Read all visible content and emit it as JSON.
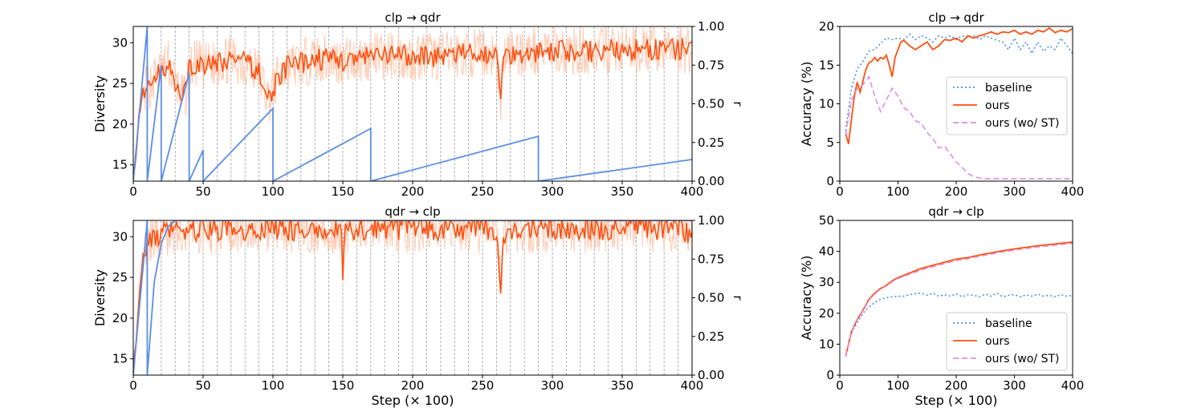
{
  "colors": {
    "ours": "#ff4f0e",
    "ours_raw": "#ffc9b0",
    "r_curve": "#5b8ee6",
    "baseline": "#4a90e2",
    "wo_st": "#dd8fdb",
    "grid": "#9a9a9a"
  },
  "chart_data": [
    {
      "id": "div-top",
      "type": "line",
      "title": "clp → qdr",
      "xlabel": "",
      "ylabel": "Diversity",
      "y2label": "r",
      "xlim": [
        0,
        400
      ],
      "ylim": [
        13,
        32
      ],
      "y2lim": [
        0,
        1
      ],
      "xticks": [
        0,
        50,
        100,
        150,
        200,
        250,
        300,
        350,
        400
      ],
      "yticks": [
        15,
        20,
        25,
        30
      ],
      "y2ticks": [
        "0.00",
        "0.25",
        "0.50",
        "0.75",
        "1.00"
      ],
      "restart_lines": [
        10,
        20,
        30,
        40,
        50,
        60,
        70,
        80,
        90,
        100,
        110,
        120,
        130,
        140,
        150,
        160,
        170,
        180,
        190,
        200,
        210,
        220,
        230,
        240,
        250,
        260,
        270,
        280,
        290,
        300,
        310,
        320,
        330,
        340,
        350,
        360,
        370,
        380,
        390
      ],
      "diversity_smoothed": {
        "x": [
          0,
          2,
          4,
          6,
          8,
          10,
          15,
          20,
          25,
          30,
          35,
          38,
          40,
          45,
          50,
          60,
          70,
          80,
          90,
          97,
          100,
          105,
          110,
          120,
          130,
          140,
          150,
          160,
          170,
          180,
          190,
          200,
          210,
          220,
          230,
          240,
          250,
          260,
          263,
          264,
          266,
          270,
          280,
          290,
          300,
          310,
          320,
          330,
          340,
          350,
          360,
          370,
          380,
          390,
          400
        ],
        "y": [
          13.5,
          16,
          21,
          23,
          24,
          24.5,
          25.5,
          26.5,
          27.5,
          25.5,
          23,
          24,
          26.5,
          27.5,
          27,
          27.5,
          28,
          27.5,
          26.5,
          23,
          24.5,
          26,
          27,
          27.5,
          28,
          28,
          27.8,
          28,
          28.2,
          28.3,
          28.5,
          28.2,
          28.5,
          28.3,
          28.5,
          28.6,
          28.7,
          28.5,
          23,
          26,
          28.5,
          28.7,
          28.8,
          28.9,
          29,
          28.9,
          29,
          29,
          29.1,
          29,
          29.1,
          29.2,
          29.1,
          29.2,
          29.2
        ]
      },
      "r_curve": {
        "x": [
          0,
          10,
          10.01,
          20,
          20.01,
          40,
          40.01,
          50,
          50.01,
          100,
          100.01,
          170,
          170.01,
          290,
          290.01,
          400
        ],
        "y": [
          0.0,
          1.0,
          0.0,
          0.75,
          0.0,
          0.7,
          0.0,
          0.2,
          0.0,
          0.47,
          0.0,
          0.34,
          0.0,
          0.29,
          0.0,
          0.14
        ]
      }
    },
    {
      "id": "div-bot",
      "type": "line",
      "title": "qdr → clp",
      "xlabel": "Step (× 100)",
      "ylabel": "Diversity",
      "y2label": "r",
      "xlim": [
        0,
        400
      ],
      "ylim": [
        13,
        32
      ],
      "y2lim": [
        0,
        1
      ],
      "xticks": [
        0,
        50,
        100,
        150,
        200,
        250,
        300,
        350,
        400
      ],
      "yticks": [
        15,
        20,
        25,
        30
      ],
      "y2ticks": [
        "0.00",
        "0.25",
        "0.50",
        "0.75",
        "1.00"
      ],
      "restart_lines": [
        10,
        20,
        30,
        40,
        50,
        60,
        70,
        80,
        90,
        100,
        110,
        120,
        130,
        140,
        150,
        160,
        170,
        180,
        190,
        200,
        210,
        220,
        230,
        240,
        250,
        260,
        270,
        280,
        290,
        300,
        310,
        320,
        330,
        340,
        350,
        360,
        370,
        380,
        390
      ],
      "diversity_smoothed": {
        "x": [
          0,
          2,
          4,
          6,
          8,
          10,
          15,
          20,
          25,
          30,
          40,
          60,
          80,
          100,
          120,
          140,
          149,
          150,
          151,
          160,
          180,
          200,
          220,
          240,
          260,
          263,
          264,
          266,
          270,
          290,
          310,
          330,
          350,
          370,
          390,
          400
        ],
        "y": [
          14,
          17,
          22,
          26,
          28,
          29,
          30,
          30.5,
          30.7,
          30.8,
          30.8,
          30.9,
          30.9,
          30.9,
          30.9,
          31,
          30.5,
          23.5,
          30.5,
          30.9,
          31,
          31,
          31,
          31,
          30.8,
          24,
          27,
          30.5,
          30.9,
          31,
          31,
          31,
          31,
          31,
          30.9,
          30.5
        ]
      },
      "r_curve": {
        "x": [
          0,
          10,
          10.01,
          15,
          20,
          25,
          30,
          400
        ],
        "y": [
          0.0,
          1.0,
          0.0,
          0.6,
          0.85,
          0.96,
          1.0,
          1.0
        ]
      }
    },
    {
      "id": "acc-top",
      "type": "line",
      "title": "clp → qdr",
      "xlabel": "",
      "ylabel": "Accuracy (%)",
      "xlim": [
        0,
        400
      ],
      "ylim": [
        0,
        20
      ],
      "xticks": [
        0,
        100,
        200,
        300,
        400
      ],
      "yticks": [
        0,
        5,
        10,
        15,
        20
      ],
      "legend_position": "center-right",
      "series": [
        {
          "name": "baseline",
          "style": "dotted",
          "x": [
            10,
            20,
            30,
            40,
            50,
            60,
            70,
            80,
            90,
            100,
            110,
            120,
            130,
            140,
            150,
            160,
            170,
            180,
            190,
            200,
            210,
            220,
            230,
            240,
            250,
            260,
            270,
            280,
            290,
            300,
            310,
            320,
            330,
            340,
            350,
            360,
            370,
            380,
            390,
            400
          ],
          "y": [
            6.5,
            12,
            14.5,
            15.5,
            16.8,
            17,
            17.8,
            18.5,
            18.3,
            18.5,
            18.3,
            19,
            18.3,
            18.8,
            18.5,
            18,
            18.8,
            18.5,
            18.8,
            18.3,
            18.8,
            18.5,
            18.8,
            18.3,
            18.8,
            18.5,
            18.2,
            18,
            17,
            18.5,
            17,
            18,
            16.5,
            18,
            16.8,
            17.5,
            17,
            18.5,
            17.5,
            16.5
          ]
        },
        {
          "name": "ours",
          "style": "solid",
          "x": [
            10,
            15,
            20,
            25,
            30,
            35,
            40,
            45,
            50,
            55,
            60,
            65,
            70,
            75,
            80,
            85,
            90,
            95,
            100,
            105,
            110,
            120,
            130,
            140,
            150,
            160,
            170,
            180,
            190,
            200,
            210,
            220,
            230,
            240,
            250,
            260,
            270,
            280,
            290,
            300,
            310,
            320,
            330,
            340,
            350,
            360,
            370,
            380,
            390,
            400
          ],
          "y": [
            6.2,
            4.8,
            8,
            11,
            12.8,
            11.5,
            13,
            14.5,
            15.3,
            15.5,
            16,
            15.5,
            16,
            15.8,
            16.3,
            15,
            13.5,
            16,
            17,
            18,
            18.2,
            17.5,
            17,
            17.5,
            18,
            17,
            17.5,
            18.3,
            18.2,
            18.5,
            18,
            18.8,
            18.5,
            18.8,
            19,
            19.3,
            19,
            19.3,
            19.2,
            19.5,
            19,
            19.3,
            19,
            19.5,
            19.3,
            19.8,
            19.2,
            19.5,
            19.3,
            19.7
          ]
        },
        {
          "name": "ours (wo/ ST)",
          "style": "dashed",
          "x": [
            10,
            20,
            30,
            40,
            50,
            60,
            70,
            80,
            90,
            100,
            110,
            120,
            130,
            140,
            150,
            160,
            170,
            180,
            190,
            200,
            210,
            220,
            230,
            240,
            250,
            260,
            270,
            280,
            290,
            300,
            310,
            320,
            330,
            340,
            350,
            360,
            370,
            380,
            390,
            400
          ],
          "y": [
            6,
            10.5,
            12,
            12.5,
            13.5,
            11,
            9,
            10.5,
            12,
            11,
            9.5,
            9,
            7.8,
            7.5,
            6.3,
            5.5,
            4.3,
            4.5,
            3.5,
            2.5,
            1.8,
            1,
            0.6,
            0.4,
            0.3,
            0.3,
            0.3,
            0.3,
            0.3,
            0.3,
            0.3,
            0.3,
            0.3,
            0.3,
            0.3,
            0.3,
            0.3,
            0.3,
            0.3,
            0.3
          ]
        }
      ],
      "legend": [
        "baseline",
        "ours",
        "ours (wo/ ST)"
      ]
    },
    {
      "id": "acc-bot",
      "type": "line",
      "title": "qdr → clp",
      "xlabel": "Step (× 100)",
      "ylabel": "Accuracy (%)",
      "xlim": [
        0,
        400
      ],
      "ylim": [
        0,
        50
      ],
      "xticks": [
        0,
        100,
        200,
        300,
        400
      ],
      "yticks": [
        0,
        10,
        20,
        30,
        40,
        50
      ],
      "legend_position": "lower-right",
      "series": [
        {
          "name": "baseline",
          "style": "dotted",
          "x": [
            10,
            20,
            30,
            40,
            50,
            60,
            70,
            80,
            90,
            100,
            110,
            120,
            130,
            140,
            150,
            160,
            170,
            180,
            190,
            200,
            210,
            220,
            230,
            240,
            250,
            260,
            270,
            280,
            290,
            300,
            310,
            320,
            330,
            340,
            350,
            360,
            370,
            380,
            390,
            400
          ],
          "y": [
            6,
            13.5,
            17,
            20,
            22,
            23.5,
            24.5,
            25,
            25.3,
            25.5,
            25.5,
            26,
            26.3,
            26.5,
            25.8,
            26.5,
            25.5,
            26,
            25.5,
            26.3,
            25.3,
            26,
            25.8,
            25.3,
            26.2,
            25.5,
            26.5,
            25.3,
            25.8,
            26,
            25.3,
            26,
            25.5,
            26.2,
            25.5,
            25.8,
            25.3,
            26,
            25.5,
            25.8
          ]
        },
        {
          "name": "ours",
          "style": "solid",
          "x": [
            10,
            20,
            30,
            40,
            50,
            60,
            70,
            80,
            90,
            100,
            120,
            140,
            160,
            180,
            200,
            220,
            240,
            260,
            280,
            300,
            320,
            340,
            360,
            380,
            400
          ],
          "y": [
            6,
            14,
            18,
            21,
            24.5,
            26.5,
            28,
            29,
            30.5,
            31.5,
            33,
            34.5,
            35.5,
            36.5,
            37.5,
            38,
            38.8,
            39.5,
            40.2,
            40.8,
            41.3,
            41.8,
            42.2,
            42.6,
            43
          ]
        },
        {
          "name": "ours (wo/ ST)",
          "style": "dashed",
          "x": [
            10,
            20,
            30,
            40,
            50,
            60,
            70,
            80,
            90,
            100,
            120,
            140,
            160,
            180,
            200,
            220,
            240,
            260,
            280,
            300,
            320,
            340,
            360,
            380,
            400
          ],
          "y": [
            6,
            13.8,
            17.8,
            20.8,
            24.2,
            26.2,
            27.8,
            28.8,
            30.2,
            31.2,
            32.6,
            34,
            35,
            36,
            37,
            37.6,
            38.4,
            39.1,
            39.8,
            40.4,
            40.9,
            41.4,
            41.8,
            42.2,
            42.6
          ]
        }
      ],
      "legend": [
        "baseline",
        "ours",
        "ours (wo/ ST)"
      ]
    }
  ]
}
